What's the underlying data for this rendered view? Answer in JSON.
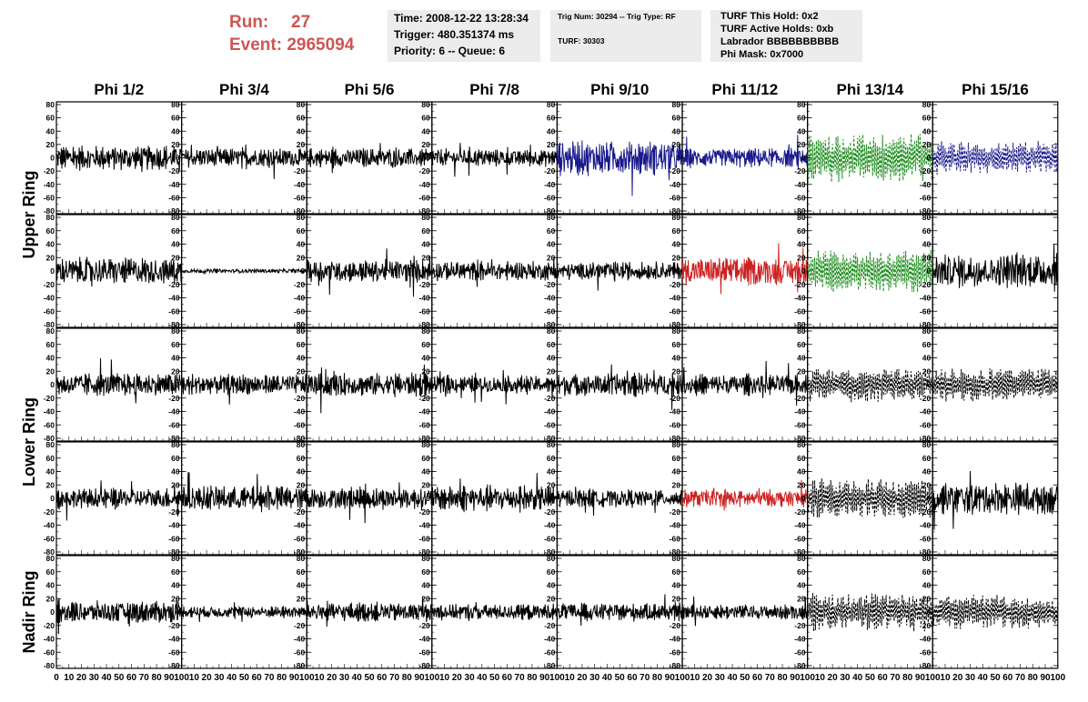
{
  "header": {
    "run_label": "Run:",
    "run_value": "27",
    "event_label": "Event:",
    "event_value": "2965094",
    "time": "Time: 2008-12-22 13:28:34",
    "trigger": "Trigger: 480.351374 ms",
    "priority": "Priority: 6 -- Queue: 6",
    "trig_num": "Trig Num: 30294 -- Trig Type: RF",
    "turf": "TURF: 30303",
    "turf_this_hold": "TURF This Hold: 0x2",
    "turf_active_holds": "TURF Active Holds: 0xb",
    "labrador": "Labrador BBBBBBBBBB",
    "phi_mask": "Phi Mask: 0x7000"
  },
  "colors": {
    "red_text": "#d05454",
    "black": "#000000",
    "blue": "#1a1a8c",
    "green": "#1a8c1a",
    "red": "#cc2222"
  },
  "chart_data": {
    "type": "line",
    "columns": [
      "Phi 1/2",
      "Phi 3/4",
      "Phi 5/6",
      "Phi 7/8",
      "Phi 9/10",
      "Phi 11/12",
      "Phi 13/14",
      "Phi 15/16"
    ],
    "ring_labels": [
      "Upper Ring",
      "Lower Ring",
      "Nadir Ring"
    ],
    "rows": 5,
    "ylim": [
      -80,
      80
    ],
    "yticks": [
      "-80",
      "-60",
      "-40",
      "-20",
      "0",
      "20",
      "40",
      "60",
      "80"
    ],
    "xlim": [
      0,
      100
    ],
    "xticks": [
      "0",
      "10",
      "20",
      "30",
      "40",
      "50",
      "60",
      "70",
      "80",
      "90",
      "100"
    ],
    "panels": [
      [
        {
          "color": "black",
          "style": "solid",
          "amp": 18
        },
        {
          "color": "black",
          "style": "solid",
          "amp": 14
        },
        {
          "color": "black",
          "style": "solid",
          "amp": 14
        },
        {
          "color": "black",
          "style": "solid",
          "amp": 13
        },
        {
          "color": "blue",
          "style": "solid",
          "amp": 25
        },
        {
          "color": "blue",
          "style": "solid",
          "amp": 14
        },
        {
          "color": "green",
          "style": "dashed",
          "amp": 32
        },
        {
          "color": "blue",
          "style": "dashed",
          "amp": 22
        }
      ],
      [
        {
          "color": "black",
          "style": "solid",
          "amp": 20
        },
        {
          "color": "black",
          "style": "solid",
          "amp": 3
        },
        {
          "color": "black",
          "style": "solid",
          "amp": 16
        },
        {
          "color": "black",
          "style": "solid",
          "amp": 14
        },
        {
          "color": "black",
          "style": "solid",
          "amp": 13
        },
        {
          "color": "red",
          "style": "solid",
          "amp": 20
        },
        {
          "color": "green",
          "style": "dashed",
          "amp": 28
        },
        {
          "color": "black",
          "style": "solid",
          "amp": 24
        }
      ],
      [
        {
          "color": "black",
          "style": "solid",
          "amp": 17
        },
        {
          "color": "black",
          "style": "solid",
          "amp": 15
        },
        {
          "color": "black",
          "style": "solid",
          "amp": 17
        },
        {
          "color": "black",
          "style": "solid",
          "amp": 13
        },
        {
          "color": "black",
          "style": "solid",
          "amp": 17
        },
        {
          "color": "black",
          "style": "solid",
          "amp": 15
        },
        {
          "color": "black",
          "style": "dashed",
          "amp": 22
        },
        {
          "color": "black",
          "style": "dashed",
          "amp": 22
        }
      ],
      [
        {
          "color": "black",
          "style": "solid",
          "amp": 15
        },
        {
          "color": "black",
          "style": "solid",
          "amp": 18
        },
        {
          "color": "black",
          "style": "solid",
          "amp": 16
        },
        {
          "color": "black",
          "style": "solid",
          "amp": 19
        },
        {
          "color": "black",
          "style": "solid",
          "amp": 13
        },
        {
          "color": "red",
          "style": "solid",
          "amp": 13
        },
        {
          "color": "black",
          "style": "dashed",
          "amp": 25
        },
        {
          "color": "black",
          "style": "solid",
          "amp": 23
        }
      ],
      [
        {
          "color": "black",
          "style": "solid",
          "amp": 16
        },
        {
          "color": "black",
          "style": "solid",
          "amp": 9
        },
        {
          "color": "black",
          "style": "solid",
          "amp": 14
        },
        {
          "color": "black",
          "style": "solid",
          "amp": 12
        },
        {
          "color": "black",
          "style": "solid",
          "amp": 13
        },
        {
          "color": "black",
          "style": "solid",
          "amp": 11
        },
        {
          "color": "black",
          "style": "dashed",
          "amp": 25
        },
        {
          "color": "black",
          "style": "dashed",
          "amp": 22
        }
      ]
    ]
  }
}
